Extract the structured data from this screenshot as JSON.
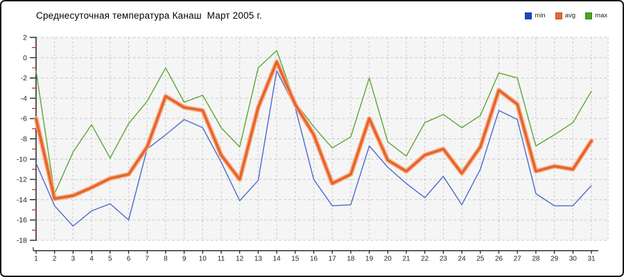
{
  "header": {
    "title": "Среднесуточная температура Канаш  Март 2005 г."
  },
  "chart_data": {
    "type": "line",
    "title": "Среднесуточная температура Канаш  Март 2005 г.",
    "xlabel": "",
    "ylabel": "",
    "categories": [
      1,
      2,
      3,
      4,
      5,
      6,
      7,
      8,
      9,
      10,
      11,
      12,
      13,
      14,
      15,
      16,
      17,
      18,
      19,
      20,
      21,
      22,
      23,
      24,
      25,
      26,
      27,
      28,
      29,
      30,
      31
    ],
    "series": [
      {
        "name": "min",
        "color": "#4a68d2",
        "legend_color": "#2244cc",
        "width": 1.4,
        "values": [
          -10.4,
          -14.6,
          -16.6,
          -15.1,
          -14.4,
          -16.0,
          -9.0,
          -7.6,
          -6.1,
          -6.9,
          -10.3,
          -14.1,
          -12.1,
          -1.3,
          -4.9,
          -12.0,
          -14.6,
          -14.5,
          -8.7,
          -10.8,
          -12.4,
          -13.8,
          -11.7,
          -14.5,
          -11.0,
          -5.2,
          -6.1,
          -13.4,
          -14.6,
          -14.6,
          -12.6
        ]
      },
      {
        "name": "avg",
        "color": "#e8622a",
        "legend_color": "#e8692e",
        "halo": "#f5ad85",
        "width": 3.4,
        "values": [
          -6.0,
          -13.9,
          -13.6,
          -12.8,
          -11.9,
          -11.5,
          -8.8,
          -3.8,
          -4.9,
          -5.2,
          -9.6,
          -12.0,
          -4.9,
          -0.4,
          -4.6,
          -7.6,
          -12.4,
          -11.5,
          -6.0,
          -10.1,
          -11.2,
          -9.6,
          -9.0,
          -11.4,
          -8.8,
          -3.2,
          -4.6,
          -11.2,
          -10.7,
          -11.0,
          -8.2
        ]
      },
      {
        "name": "max",
        "color": "#5ba632",
        "legend_color": "#44aa22",
        "width": 1.4,
        "values": [
          -1.3,
          -13.4,
          -9.3,
          -6.6,
          -9.9,
          -6.5,
          -4.3,
          -1.0,
          -4.4,
          -3.7,
          -6.9,
          -8.8,
          -1.0,
          0.7,
          -4.4,
          -6.8,
          -8.9,
          -7.8,
          -2.0,
          -8.3,
          -9.7,
          -6.4,
          -5.6,
          -6.9,
          -5.7,
          -1.5,
          -2.0,
          -8.7,
          -7.6,
          -6.4,
          -3.3
        ]
      }
    ],
    "ylim": [
      -18,
      2
    ],
    "yticks": [
      2,
      0,
      -2,
      -4,
      -6,
      -8,
      -10,
      -12,
      -14,
      -16,
      -18
    ],
    "y_minor_step": 1,
    "grid": true,
    "legend_position": "top-right",
    "colors": {
      "plot_bg": "#f5f5f5",
      "gridline": "#c9c9c9",
      "axis": "#000000",
      "minor_tick": "#cc2222",
      "tick_label": "#222222"
    }
  }
}
